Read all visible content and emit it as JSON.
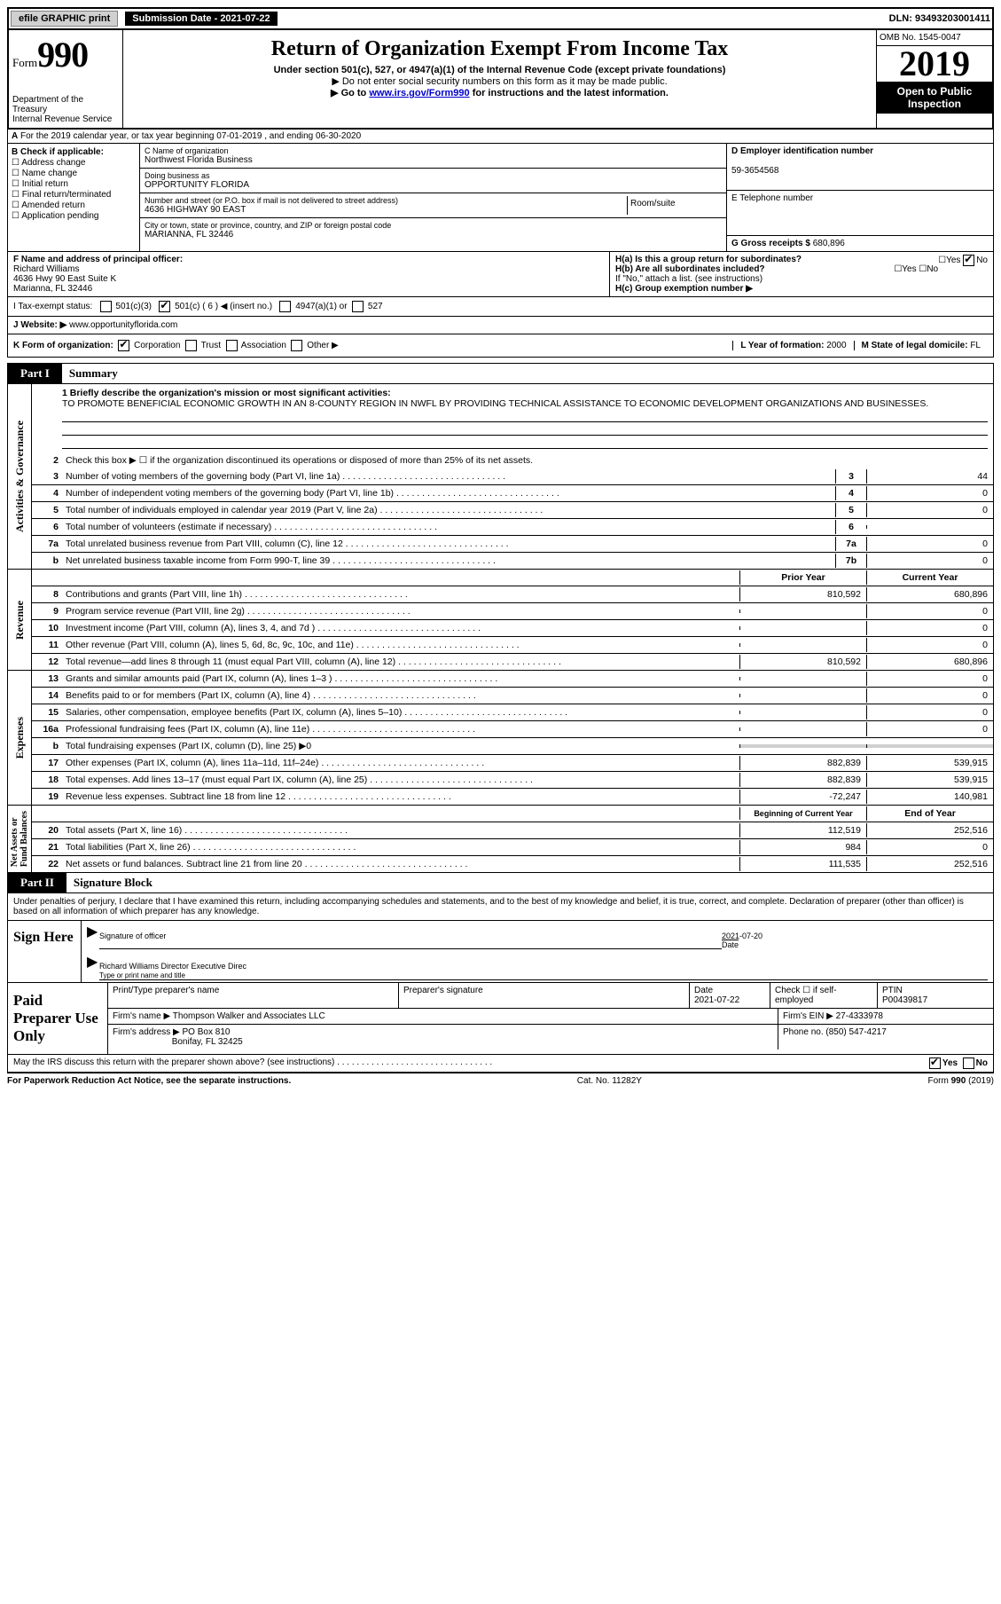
{
  "topbar": {
    "efile": "efile GRAPHIC print",
    "submission": "Submission Date - 2021-07-22",
    "dln": "DLN: 93493203001411"
  },
  "header": {
    "form_word": "Form",
    "form_num": "990",
    "dept": "Department of the Treasury\nInternal Revenue Service",
    "title": "Return of Organization Exempt From Income Tax",
    "sub": "Under section 501(c), 527, or 4947(a)(1) of the Internal Revenue Code (except private foundations)",
    "line1": "▶ Do not enter social security numbers on this form as it may be made public.",
    "line2_pre": "▶ Go to ",
    "line2_link": "www.irs.gov/Form990",
    "line2_post": " for instructions and the latest information.",
    "omb": "OMB No. 1545-0047",
    "year": "2019",
    "open": "Open to Public Inspection"
  },
  "period": "For the 2019 calendar year, or tax year beginning 07-01-2019    , and ending 06-30-2020",
  "boxB": {
    "label": "B Check if applicable:",
    "opts": [
      "Address change",
      "Name change",
      "Initial return",
      "Final return/terminated",
      "Amended return",
      "Application pending"
    ]
  },
  "boxC": {
    "name_label": "C Name of organization",
    "name": "Northwest Florida Business",
    "dba_label": "Doing business as",
    "dba": "OPPORTUNITY FLORIDA",
    "addr_label": "Number and street (or P.O. box if mail is not delivered to street address)",
    "addr": "4636 HIGHWAY 90 EAST",
    "room_label": "Room/suite",
    "city_label": "City or town, state or province, country, and ZIP or foreign postal code",
    "city": "MARIANNA, FL  32446"
  },
  "boxD": {
    "label": "D Employer identification number",
    "val": "59-3654568"
  },
  "boxE": {
    "label": "E Telephone number",
    "val": ""
  },
  "boxG": {
    "label": "G Gross receipts $",
    "val": "680,896"
  },
  "boxF": {
    "label": "F  Name and address of principal officer:",
    "name": "Richard Williams",
    "addr1": "4636 Hwy 90 East Suite K",
    "addr2": "Marianna, FL  32446"
  },
  "boxH": {
    "a": "H(a)  Is this a group return for subordinates?",
    "a_yes": "Yes",
    "a_no": "No",
    "b": "H(b)  Are all subordinates included?",
    "b_note": "If \"No,\" attach a list. (see instructions)",
    "c": "H(c)  Group exemption number ▶"
  },
  "taxI": {
    "label": "I    Tax-exempt status:",
    "o1": "501(c)(3)",
    "o2": "501(c) ( 6 ) ◀ (insert no.)",
    "o3": "4947(a)(1) or",
    "o4": "527"
  },
  "boxJ": {
    "label": "J    Website: ▶",
    "val": "www.opportunityflorida.com"
  },
  "boxK": {
    "label": "K Form of organization:",
    "o1": "Corporation",
    "o2": "Trust",
    "o3": "Association",
    "o4": "Other ▶"
  },
  "boxL": {
    "label": "L Year of formation:",
    "val": "2000"
  },
  "boxM": {
    "label": "M State of legal domicile:",
    "val": "FL"
  },
  "part1": {
    "tab": "Part I",
    "title": "Summary"
  },
  "mission": {
    "label": "1  Briefly describe the organization's mission or most significant activities:",
    "text": "TO PROMOTE BENEFICIAL ECONOMIC GROWTH IN AN 8-COUNTY REGION IN NWFL BY PROVIDING TECHNICAL ASSISTANCE TO ECONOMIC DEVELOPMENT ORGANIZATIONS AND BUSINESSES."
  },
  "lines_gov": [
    {
      "n": "2",
      "d": "Check this box ▶ ☐  if the organization discontinued its operations or disposed of more than 25% of its net assets."
    },
    {
      "n": "3",
      "d": "Number of voting members of the governing body (Part VI, line 1a)",
      "box": "3",
      "v": "44"
    },
    {
      "n": "4",
      "d": "Number of independent voting members of the governing body (Part VI, line 1b)",
      "box": "4",
      "v": "0"
    },
    {
      "n": "5",
      "d": "Total number of individuals employed in calendar year 2019 (Part V, line 2a)",
      "box": "5",
      "v": "0"
    },
    {
      "n": "6",
      "d": "Total number of volunteers (estimate if necessary)",
      "box": "6",
      "v": ""
    },
    {
      "n": "7a",
      "d": "Total unrelated business revenue from Part VIII, column (C), line 12",
      "box": "7a",
      "v": "0"
    },
    {
      "n": "b",
      "d": "Net unrelated business taxable income from Form 990-T, line 39",
      "box": "7b",
      "v": "0"
    }
  ],
  "col_headers": {
    "prior": "Prior Year",
    "current": "Current Year"
  },
  "lines_rev": [
    {
      "n": "8",
      "d": "Contributions and grants (Part VIII, line 1h)",
      "p": "810,592",
      "c": "680,896"
    },
    {
      "n": "9",
      "d": "Program service revenue (Part VIII, line 2g)",
      "p": "",
      "c": "0"
    },
    {
      "n": "10",
      "d": "Investment income (Part VIII, column (A), lines 3, 4, and 7d )",
      "p": "",
      "c": "0"
    },
    {
      "n": "11",
      "d": "Other revenue (Part VIII, column (A), lines 5, 6d, 8c, 9c, 10c, and 11e)",
      "p": "",
      "c": "0"
    },
    {
      "n": "12",
      "d": "Total revenue—add lines 8 through 11 (must equal Part VIII, column (A), line 12)",
      "p": "810,592",
      "c": "680,896"
    }
  ],
  "lines_exp": [
    {
      "n": "13",
      "d": "Grants and similar amounts paid (Part IX, column (A), lines 1–3 )",
      "p": "",
      "c": "0"
    },
    {
      "n": "14",
      "d": "Benefits paid to or for members (Part IX, column (A), line 4)",
      "p": "",
      "c": "0"
    },
    {
      "n": "15",
      "d": "Salaries, other compensation, employee benefits (Part IX, column (A), lines 5–10)",
      "p": "",
      "c": "0"
    },
    {
      "n": "16a",
      "d": "Professional fundraising fees (Part IX, column (A), line 11e)",
      "p": "",
      "c": "0"
    },
    {
      "n": "b",
      "d": "Total fundraising expenses (Part IX, column (D), line 25) ▶0",
      "shaded": true
    },
    {
      "n": "17",
      "d": "Other expenses (Part IX, column (A), lines 11a–11d, 11f–24e)",
      "p": "882,839",
      "c": "539,915"
    },
    {
      "n": "18",
      "d": "Total expenses. Add lines 13–17 (must equal Part IX, column (A), line 25)",
      "p": "882,839",
      "c": "539,915"
    },
    {
      "n": "19",
      "d": "Revenue less expenses. Subtract line 18 from line 12",
      "p": "-72,247",
      "c": "140,981"
    }
  ],
  "col_headers2": {
    "prior": "Beginning of Current Year",
    "current": "End of Year"
  },
  "lines_net": [
    {
      "n": "20",
      "d": "Total assets (Part X, line 16)",
      "p": "112,519",
      "c": "252,516"
    },
    {
      "n": "21",
      "d": "Total liabilities (Part X, line 26)",
      "p": "984",
      "c": "0"
    },
    {
      "n": "22",
      "d": "Net assets or fund balances. Subtract line 21 from line 20",
      "p": "111,535",
      "c": "252,516"
    }
  ],
  "vtabs": {
    "gov": "Activities & Governance",
    "rev": "Revenue",
    "exp": "Expenses",
    "net": "Net Assets or\nFund Balances"
  },
  "part2": {
    "tab": "Part II",
    "title": "Signature Block"
  },
  "sig": {
    "decl": "Under penalties of perjury, I declare that I have examined this return, including accompanying schedules and statements, and to the best of my knowledge and belief, it is true, correct, and complete. Declaration of preparer (other than officer) is based on all information of which preparer has any knowledge.",
    "sign_here": "Sign Here",
    "sig_officer": "Signature of officer",
    "date_label": "Date",
    "date_val": "2021-07-20",
    "name_title": "Richard Williams Director  Executive Direc",
    "type_print": "Type or print name and title"
  },
  "prep": {
    "label": "Paid Preparer Use Only",
    "h1": "Print/Type preparer's name",
    "h2": "Preparer's signature",
    "h3": "Date",
    "h3v": "2021-07-22",
    "h4": "Check ☐ if self-employed",
    "h5": "PTIN",
    "h5v": "P00439817",
    "firm_name_label": "Firm's name    ▶",
    "firm_name": "Thompson Walker and Associates LLC",
    "ein_label": "Firm's EIN ▶",
    "ein": "27-4333978",
    "addr_label": "Firm's address ▶",
    "addr1": "PO Box 810",
    "addr2": "Bonifay, FL  32425",
    "phone_label": "Phone no.",
    "phone": "(850) 547-4217",
    "discuss": "May the IRS discuss this return with the preparer shown above? (see instructions)",
    "yes": "Yes",
    "no": "No"
  },
  "footer": {
    "left": "For Paperwork Reduction Act Notice, see the separate instructions.",
    "mid": "Cat. No. 11282Y",
    "right": "Form 990 (2019)"
  }
}
